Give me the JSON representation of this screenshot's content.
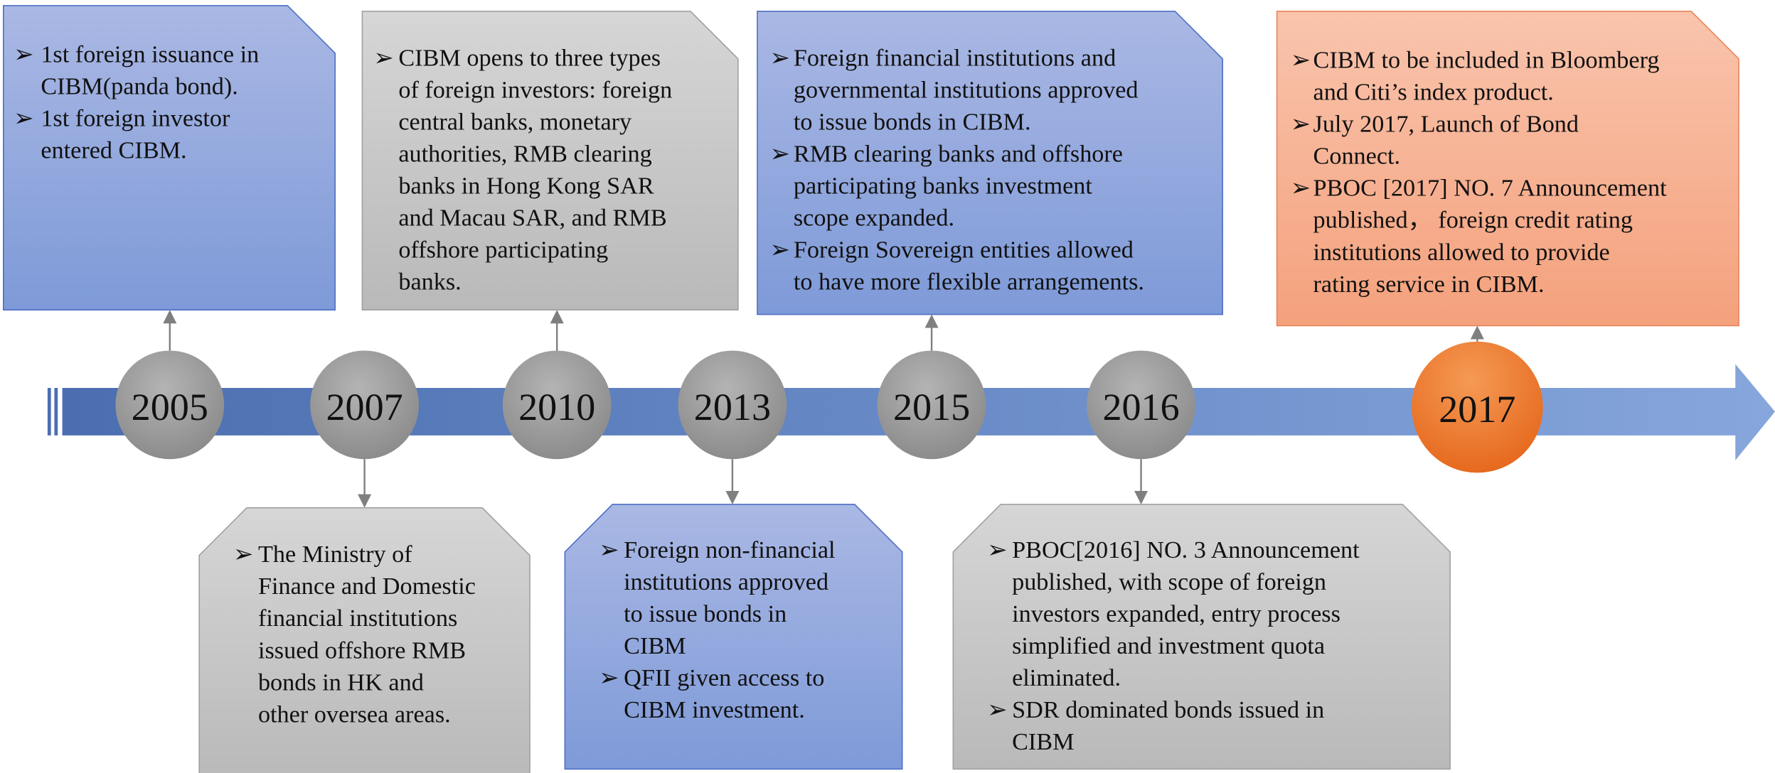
{
  "events": [
    {
      "year": "2005",
      "items": [
        [
          "1st foreign issuance in",
          "CIBM(panda bond)."
        ],
        [
          "1st foreign investor",
          "entered CIBM."
        ]
      ]
    },
    {
      "year": "2007",
      "items": [
        [
          "The Ministry of",
          "Finance and Domestic",
          "financial institutions",
          "issued offshore RMB",
          "bonds in HK and",
          "other oversea areas."
        ]
      ]
    },
    {
      "year": "2010",
      "items": [
        [
          "CIBM opens to three types",
          "of foreign investors: foreign",
          "central banks, monetary",
          "authorities, RMB clearing",
          "banks in Hong Kong SAR",
          "and Macau SAR, and RMB",
          "offshore participating",
          "banks."
        ]
      ]
    },
    {
      "year": "2013",
      "items": [
        [
          "Foreign non-financial",
          "institutions approved",
          "to issue bonds in",
          "CIBM"
        ],
        [
          "QFII given access to",
          "CIBM investment."
        ]
      ]
    },
    {
      "year": "2015",
      "items": [
        [
          "Foreign financial institutions and",
          "governmental institutions approved",
          "to issue bonds in CIBM."
        ],
        [
          "RMB clearing banks and offshore",
          "participating banks investment",
          "scope expanded."
        ],
        [
          "Foreign Sovereign entities allowed",
          "to have more flexible arrangements."
        ]
      ]
    },
    {
      "year": "2016",
      "items": [
        [
          "PBOC[2016] NO. 3 Announcement",
          "published, with scope of foreign",
          "investors expanded, entry process",
          "simplified and investment quota",
          "eliminated."
        ],
        [
          "SDR dominated bonds issued in",
          "CIBM"
        ]
      ]
    },
    {
      "year": "2017",
      "items": [
        [
          "CIBM to be included in Bloomberg",
          "and Citi’s index product."
        ],
        [
          "July 2017, Launch of Bond",
          "Connect."
        ],
        [
          "PBOC [2017] NO. 7 Announcement",
          "published， foreign credit rating",
          "institutions allowed to provide",
          "rating service in CIBM."
        ]
      ]
    }
  ]
}
